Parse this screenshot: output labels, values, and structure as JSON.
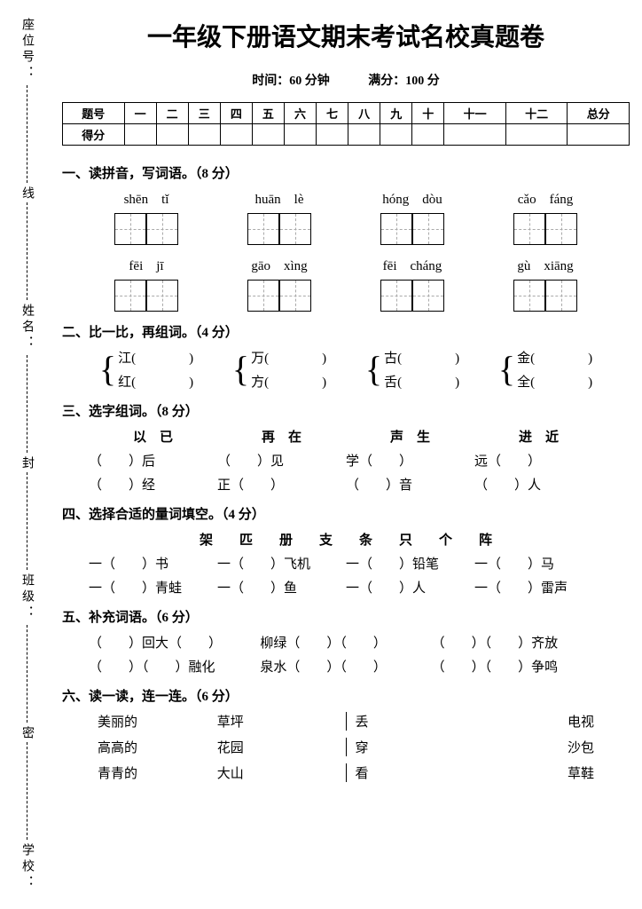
{
  "sidebar": {
    "labels": [
      "座位号：",
      "姓名：",
      "班级：",
      "学校："
    ],
    "markers": [
      "线",
      "封",
      "密"
    ]
  },
  "title": "一年级下册语文期末考试名校真题卷",
  "timing": {
    "time": "时间：60 分钟",
    "score": "满分：100 分"
  },
  "scoreTable": {
    "row1": [
      "题号",
      "一",
      "二",
      "三",
      "四",
      "五",
      "六",
      "七",
      "八",
      "九",
      "十",
      "十一",
      "十二",
      "总分"
    ],
    "row2Label": "得分"
  },
  "q1": {
    "title": "一、读拼音，写词语。（8 分）",
    "row1": [
      "shēn　tǐ",
      "huān　lè",
      "hóng　dòu",
      "cǎo　fáng"
    ],
    "row2": [
      "fēi　jī",
      "gāo　xìng",
      "fēi　cháng",
      "gù　xiāng"
    ]
  },
  "q2": {
    "title": "二、比一比，再组词。（4 分）",
    "pairs": [
      [
        "江",
        "红"
      ],
      [
        "万",
        "方"
      ],
      [
        "古",
        "舌"
      ],
      [
        "金",
        "全"
      ]
    ]
  },
  "q3": {
    "title": "三、选字组词。（8 分）",
    "choices": [
      "以　已",
      "再　在",
      "声　生",
      "进　近"
    ],
    "row1": [
      "（　　）后",
      "（　　）见",
      "学（　　）",
      "远（　　）"
    ],
    "row2": [
      "（　　）经",
      "正（　　）",
      "（　　）音",
      "（　　）人"
    ]
  },
  "q4": {
    "title": "四、选择合适的量词填空。（4 分）",
    "choices": [
      "架",
      "匹",
      "册",
      "支",
      "条",
      "只",
      "个",
      "阵"
    ],
    "row1": [
      "一（　　）书",
      "一（　　）飞机",
      "一（　　）铅笔",
      "一（　　）马"
    ],
    "row2": [
      "一（　　）青蛙",
      "一（　　）鱼",
      "一（　　）人",
      "一（　　）雷声"
    ]
  },
  "q5": {
    "title": "五、补充词语。（6 分）",
    "row1": [
      "（　　）回大（　　）",
      "柳绿（　　）（　　）",
      "（　　）（　　）齐放"
    ],
    "row2": [
      "（　　）（　　）融化",
      "泉水（　　）（　　）",
      "（　　）（　　）争鸣"
    ]
  },
  "q6": {
    "title": "六、读一读，连一连。（6 分）",
    "rows": [
      [
        "美丽的",
        "草坪",
        "丢",
        "电视"
      ],
      [
        "高高的",
        "花园",
        "穿",
        "沙包"
      ],
      [
        "青青的",
        "大山",
        "看",
        "草鞋"
      ]
    ]
  }
}
